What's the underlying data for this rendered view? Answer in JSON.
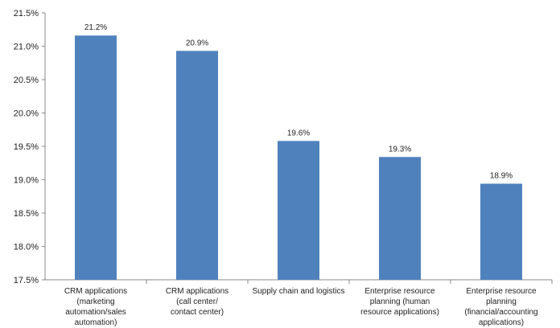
{
  "chart_data": {
    "type": "bar",
    "title": "",
    "xlabel": "",
    "ylabel": "",
    "ylim": [
      17.5,
      21.5
    ],
    "y_ticks": [
      "17.5%",
      "18.0%",
      "18.5%",
      "19.0%",
      "19.5%",
      "20.0%",
      "20.5%",
      "21.0%",
      "21.5%"
    ],
    "y_tick_values": [
      17.5,
      18.0,
      18.5,
      19.0,
      19.5,
      20.0,
      20.5,
      21.0,
      21.5
    ],
    "grid": false,
    "legend": "none",
    "bar_color": "#4F81BD",
    "categories": [
      [
        "CRM applications",
        "(marketing",
        "automation/sales",
        "automation)"
      ],
      [
        "CRM applications",
        "(call center/",
        "contact center)"
      ],
      [
        "Supply chain and logistics"
      ],
      [
        "Enterprise resource",
        "planning (human",
        "resource applications)"
      ],
      [
        "Enterprise resource",
        "planning",
        "(financial/accounting",
        "applications)"
      ]
    ],
    "values": [
      21.16,
      20.93,
      19.58,
      19.34,
      18.94
    ],
    "data_labels": [
      "21.2%",
      "20.9%",
      "19.6%",
      "19.3%",
      "18.9%"
    ]
  }
}
